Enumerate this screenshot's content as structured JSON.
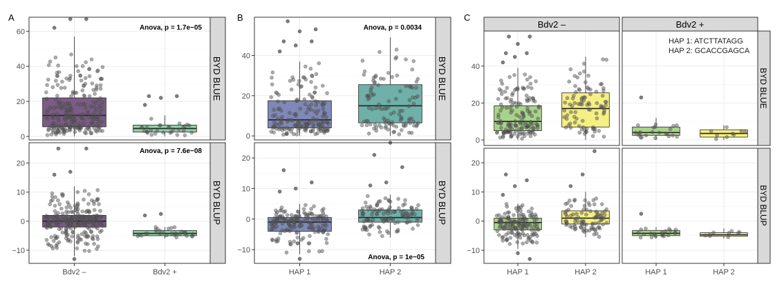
{
  "panel_labels": [
    "A",
    "B",
    "C"
  ],
  "strips": {
    "blue": "BYD BLUE",
    "blup": "BYD BLUP",
    "bdv2_minus": "Bdv2 –",
    "bdv2_plus": "Bdv2 +"
  },
  "annotations": {
    "a_blue": "Anova, p = 1.7e−05",
    "a_blup": "Anova, p = 7.6e−08",
    "b_blue": "Anova, p = 0.0034",
    "b_blup": "Anova, p = 1e−05",
    "hap1": "HAP 1:  ATCTTATAGG",
    "hap2": "HAP 2:  GCACCGAGCA"
  },
  "colors": {
    "bdv2_minus": "#7b5c86",
    "bdv2_plus": "#8fd1a4",
    "hap1_b": "#7f88b7",
    "hap2_b": "#6fb0a9",
    "hap1_c": "#a9d38b",
    "hap2_c": "#f6ef84",
    "point": "#4d4d4d",
    "strip_bg": "#d9d9d9",
    "grid": "#ebebeb"
  },
  "chart_data": [
    {
      "id": "A",
      "type": "box",
      "categories": [
        "Bdv2 –",
        "Bdv2 +"
      ],
      "rows": [
        {
          "strip": "BYD BLUE",
          "annotation": "Anova, p = 1.7e−05",
          "ylim": [
            -2,
            68
          ],
          "yticks": [
            0,
            20,
            40,
            60
          ],
          "boxes": [
            {
              "group": "Bdv2 –",
              "min": 0,
              "q1": 5.5,
              "median": 12,
              "q3": 22,
              "max": 57,
              "outliers": [
                62,
                67,
                67
              ],
              "n": 240,
              "fill": "#7b5c86"
            },
            {
              "group": "Bdv2 +",
              "min": 0,
              "q1": 2.5,
              "median": 4.5,
              "q3": 6.5,
              "max": 12,
              "outliers": [
                18,
                22,
                23,
                23
              ],
              "n": 30,
              "fill": "#8fd1a4"
            }
          ]
        },
        {
          "strip": "BYD BLUP",
          "annotation": "Anova, p = 7.6e−08",
          "ylim": [
            -14.5,
            27
          ],
          "yticks": [
            -10,
            0,
            10,
            20
          ],
          "boxes": [
            {
              "group": "Bdv2 –",
              "min": -12,
              "q1": -2,
              "median": 0,
              "q3": 2,
              "max": 12,
              "outliers": [
                16,
                17,
                25,
                25,
                -13
              ],
              "n": 240,
              "fill": "#7b5c86"
            },
            {
              "group": "Bdv2 +",
              "min": -6,
              "q1": -5,
              "median": -4.2,
              "q3": -3.2,
              "max": -2,
              "outliers": [
                2,
                2.5
              ],
              "n": 30,
              "fill": "#8fd1a4"
            }
          ]
        }
      ]
    },
    {
      "id": "B",
      "type": "box",
      "categories": [
        "HAP 1",
        "HAP 2"
      ],
      "rows": [
        {
          "strip": "BYD BLUE",
          "annotation": "Anova, p = 0.0034",
          "ylim": [
            -2,
            59
          ],
          "yticks": [
            0,
            20,
            40
          ],
          "boxes": [
            {
              "group": "HAP 1",
              "min": 0,
              "q1": 4,
              "median": 8,
              "q3": 17.5,
              "max": 37,
              "outliers": [
                42,
                45,
                47,
                47,
                52,
                53,
                57
              ],
              "n": 170,
              "fill": "#7f88b7"
            },
            {
              "group": "HAP 2",
              "min": 0,
              "q1": 6.5,
              "median": 15,
              "q3": 25.5,
              "max": 49,
              "outliers": [],
              "n": 110,
              "fill": "#6fb0a9"
            }
          ]
        },
        {
          "strip": "BYD BLUP",
          "annotation": "Anova, p = 1e−05",
          "ylim": [
            -14.5,
            25
          ],
          "yticks": [
            -10,
            0,
            10,
            20
          ],
          "boxes": [
            {
              "group": "HAP 1",
              "min": -11.5,
              "q1": -4,
              "median": -1,
              "q3": 0.5,
              "max": 5,
              "outliers": [
                9,
                10,
                12,
                16,
                -13
              ],
              "n": 170,
              "fill": "#7f88b7"
            },
            {
              "group": "HAP 2",
              "min": -6,
              "q1": -1,
              "median": 0.5,
              "q3": 3,
              "max": 8,
              "outliers": [
                11,
                12,
                17,
                21,
                25
              ],
              "n": 110,
              "fill": "#6fb0a9"
            }
          ]
        }
      ]
    },
    {
      "id": "C",
      "type": "box",
      "categories": [
        "HAP 1",
        "HAP 2"
      ],
      "columns": [
        "Bdv2 –",
        "Bdv2 +"
      ],
      "rows": [
        {
          "strip": "BYD BLUE",
          "ylim": [
            -3,
            59
          ],
          "yticks": [
            0,
            20,
            40
          ],
          "boxes": [
            {
              "facet": "Bdv2 –",
              "group": "HAP 1",
              "min": 0,
              "q1": 5,
              "median": 10,
              "q3": 18.5,
              "max": 39,
              "outliers": [
                42,
                45,
                47,
                47,
                52,
                56,
                56
              ],
              "n": 150,
              "fill": "#a9d38b"
            },
            {
              "facet": "Bdv2 –",
              "group": "HAP 2",
              "min": 0,
              "q1": 7,
              "median": 17,
              "q3": 25.5,
              "max": 45,
              "outliers": [],
              "n": 90,
              "fill": "#f6ef84"
            },
            {
              "facet": "Bdv2 +",
              "group": "HAP 1",
              "min": 0,
              "q1": 2.5,
              "median": 4,
              "q3": 7,
              "max": 12,
              "outliers": [
                23
              ],
              "n": 22,
              "fill": "#a9d38b"
            },
            {
              "facet": "Bdv2 +",
              "group": "HAP 2",
              "min": 0,
              "q1": 1.5,
              "median": 3.5,
              "q3": 5.5,
              "max": 8,
              "outliers": [],
              "n": 9,
              "fill": "#f6ef84"
            }
          ]
        },
        {
          "strip": "BYD BLUP",
          "ylim": [
            -14.5,
            25
          ],
          "yticks": [
            -10,
            0,
            10,
            20
          ],
          "boxes": [
            {
              "facet": "Bdv2 –",
              "group": "HAP 1",
              "min": -9.5,
              "q1": -3,
              "median": -0.5,
              "q3": 1,
              "max": 6,
              "outliers": [
                9,
                12,
                14,
                16,
                -11,
                -13
              ],
              "n": 150,
              "fill": "#a9d38b"
            },
            {
              "facet": "Bdv2 –",
              "group": "HAP 2",
              "min": -5.5,
              "q1": -1,
              "median": 1,
              "q3": 3.5,
              "max": 10,
              "outliers": [
                12,
                16,
                24
              ],
              "n": 90,
              "fill": "#f6ef84"
            },
            {
              "facet": "Bdv2 +",
              "group": "HAP 1",
              "min": -6,
              "q1": -5,
              "median": -4.2,
              "q3": -3.2,
              "max": -2,
              "outliers": [
                2.5
              ],
              "n": 22,
              "fill": "#a9d38b"
            },
            {
              "facet": "Bdv2 +",
              "group": "HAP 2",
              "min": -6,
              "q1": -5.2,
              "median": -4.7,
              "q3": -4,
              "max": -2.5,
              "outliers": [],
              "n": 9,
              "fill": "#f6ef84"
            }
          ]
        }
      ]
    }
  ]
}
